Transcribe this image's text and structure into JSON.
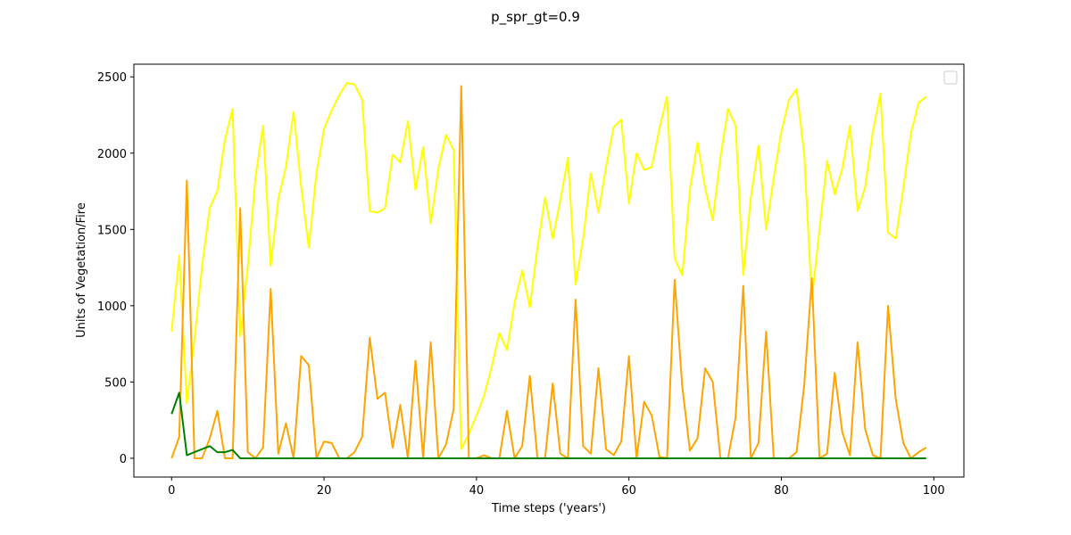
{
  "chart_data": {
    "type": "line",
    "title": "p_spr_gt=0.9",
    "xlabel": "Time steps ('years')",
    "ylabel": "Units of Vegetation/Fire",
    "xlim": [
      -4.95,
      103.95
    ],
    "ylim": [
      -123,
      2583
    ],
    "xticks": [
      0,
      20,
      40,
      60,
      80,
      100
    ],
    "yticks": [
      0,
      500,
      1000,
      1500,
      2000,
      2500
    ],
    "grid": false,
    "legend": "top-right (empty)",
    "x": [
      0,
      1,
      2,
      3,
      4,
      5,
      6,
      7,
      8,
      9,
      10,
      11,
      12,
      13,
      14,
      15,
      16,
      17,
      18,
      19,
      20,
      21,
      22,
      23,
      24,
      25,
      26,
      27,
      28,
      29,
      30,
      31,
      32,
      33,
      34,
      35,
      36,
      37,
      38,
      39,
      40,
      41,
      42,
      43,
      44,
      45,
      46,
      47,
      48,
      49,
      50,
      51,
      52,
      53,
      54,
      55,
      56,
      57,
      58,
      59,
      60,
      61,
      62,
      63,
      64,
      65,
      66,
      67,
      68,
      69,
      70,
      71,
      72,
      73,
      74,
      75,
      76,
      77,
      78,
      79,
      80,
      81,
      82,
      83,
      84,
      85,
      86,
      87,
      88,
      89,
      90,
      91,
      92,
      93,
      94,
      95,
      96,
      97,
      98,
      99
    ],
    "series": [
      {
        "color": "#ffff00",
        "values": [
          830,
          1330,
          360,
          780,
          1260,
          1640,
          1750,
          2090,
          2290,
          800,
          1260,
          1840,
          2180,
          1260,
          1700,
          1910,
          2270,
          1780,
          1380,
          1870,
          2160,
          2280,
          2380,
          2460,
          2450,
          2350,
          1620,
          1610,
          1640,
          1990,
          1940,
          2210,
          1760,
          2040,
          1540,
          1900,
          2120,
          2020,
          60,
          160,
          280,
          410,
          600,
          820,
          710,
          1020,
          1230,
          990,
          1380,
          1710,
          1440,
          1690,
          1970,
          1140,
          1440,
          1870,
          1610,
          1910,
          2170,
          2220,
          1670,
          2000,
          1890,
          1910,
          2160,
          2370,
          1310,
          1200,
          1760,
          2070,
          1770,
          1560,
          1970,
          2290,
          2180,
          1200,
          1710,
          2050,
          1500,
          1840,
          2140,
          2350,
          2420,
          1990,
          1040,
          1500,
          1950,
          1730,
          1900,
          2180,
          1620,
          1780,
          2140,
          2390,
          1480,
          1440,
          1770,
          2130,
          2330,
          2370
        ]
      },
      {
        "color": "#ffa500",
        "values": [
          0,
          140,
          1820,
          0,
          0,
          130,
          310,
          0,
          0,
          1640,
          40,
          0,
          70,
          1110,
          30,
          230,
          0,
          670,
          610,
          0,
          110,
          100,
          0,
          0,
          40,
          140,
          790,
          390,
          430,
          70,
          350,
          0,
          640,
          0,
          760,
          0,
          90,
          320,
          2440,
          0,
          0,
          20,
          0,
          0,
          310,
          0,
          80,
          540,
          0,
          0,
          490,
          30,
          0,
          1040,
          80,
          30,
          590,
          60,
          20,
          110,
          670,
          0,
          370,
          280,
          10,
          0,
          1170,
          470,
          50,
          130,
          590,
          500,
          0,
          0,
          270,
          1130,
          0,
          100,
          830,
          0,
          0,
          0,
          40,
          480,
          1180,
          0,
          30,
          560,
          170,
          20,
          760,
          190,
          20,
          0,
          1000,
          390,
          100,
          0,
          40,
          70
        ]
      },
      {
        "color": "#008000",
        "values": [
          290,
          430,
          20,
          40,
          60,
          80,
          40,
          40,
          55,
          0,
          0,
          0,
          0,
          0,
          0,
          0,
          0,
          0,
          0,
          0,
          0,
          0,
          0,
          0,
          0,
          0,
          0,
          0,
          0,
          0,
          0,
          0,
          0,
          0,
          0,
          0,
          0,
          0,
          0,
          0,
          0,
          0,
          0,
          0,
          0,
          0,
          0,
          0,
          0,
          0,
          0,
          0,
          0,
          0,
          0,
          0,
          0,
          0,
          0,
          0,
          0,
          0,
          0,
          0,
          0,
          0,
          0,
          0,
          0,
          0,
          0,
          0,
          0,
          0,
          0,
          0,
          0,
          0,
          0,
          0,
          0,
          0,
          0,
          0,
          0,
          0,
          0,
          0,
          0,
          0,
          0,
          0,
          0,
          0,
          0,
          0,
          0,
          0,
          0,
          0
        ]
      }
    ]
  }
}
